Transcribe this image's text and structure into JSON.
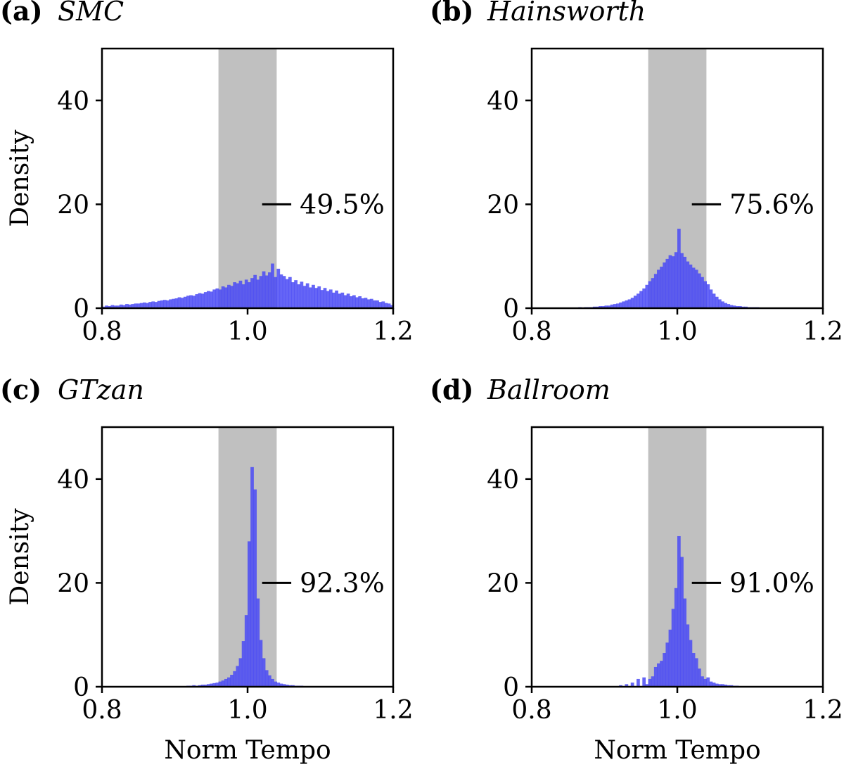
{
  "colors": {
    "bar": "#4a4af5",
    "band": "#c0c0c0",
    "axis": "#000000",
    "background": "#ffffff"
  },
  "chart_data": [
    {
      "type": "bar",
      "panel_letter": "(a)",
      "title": "SMC",
      "xlabel": "",
      "ylabel": "Density",
      "xlim": [
        0.8,
        1.2
      ],
      "ylim": [
        0,
        50
      ],
      "xticks": [
        "0.8",
        "1.0",
        "1.2"
      ],
      "yticks": [
        "0",
        "20",
        "40"
      ],
      "shaded_band": [
        0.96,
        1.04
      ],
      "band_percentage": "49.5%",
      "annotation_y": 20,
      "grid": false,
      "bin_start": 0.8,
      "bin_width": 0.004,
      "values": [
        0.3,
        0.5,
        0.4,
        0.6,
        0.5,
        0.5,
        0.7,
        0.6,
        0.8,
        0.7,
        0.8,
        0.9,
        0.9,
        1.0,
        1.1,
        1.0,
        1.2,
        1.3,
        1.2,
        1.4,
        1.5,
        1.6,
        1.5,
        1.7,
        1.8,
        1.9,
        2.1,
        2.0,
        2.2,
        2.4,
        2.5,
        2.4,
        2.7,
        2.9,
        2.8,
        3.1,
        3.3,
        3.2,
        3.6,
        3.8,
        3.6,
        4.2,
        4.0,
        4.5,
        4.3,
        5.0,
        4.8,
        5.3,
        4.6,
        5.5,
        5.0,
        5.8,
        6.4,
        5.5,
        6.2,
        7.1,
        6.3,
        6.9,
        8.6,
        6.0,
        7.6,
        6.5,
        6.2,
        5.6,
        6.0,
        5.0,
        5.4,
        4.6,
        5.1,
        4.3,
        4.8,
        4.0,
        4.5,
        3.9,
        4.2,
        3.5,
        3.9,
        3.3,
        3.6,
        3.0,
        3.4,
        2.8,
        3.0,
        2.5,
        2.8,
        2.3,
        2.5,
        2.1,
        2.3,
        1.9,
        2.0,
        1.7,
        1.8,
        1.5,
        1.5,
        1.2,
        1.3,
        1.0,
        0.9,
        0.6
      ]
    },
    {
      "type": "bar",
      "panel_letter": "(b)",
      "title": "Hainsworth",
      "xlabel": "",
      "ylabel": "",
      "xlim": [
        0.8,
        1.2
      ],
      "ylim": [
        0,
        50
      ],
      "xticks": [
        "0.8",
        "1.0",
        "1.2"
      ],
      "yticks": [
        "0",
        "20",
        "40"
      ],
      "shaded_band": [
        0.96,
        1.04
      ],
      "band_percentage": "75.6%",
      "annotation_y": 20,
      "grid": false,
      "bin_start": 0.8,
      "bin_width": 0.004,
      "values": [
        0,
        0,
        0,
        0,
        0,
        0,
        0,
        0,
        0,
        0.1,
        0,
        0.1,
        0.1,
        0.1,
        0.1,
        0.1,
        0.2,
        0.1,
        0.2,
        0.2,
        0.2,
        0.3,
        0.3,
        0.4,
        0.4,
        0.5,
        0.5,
        0.7,
        0.8,
        0.9,
        1.1,
        1.3,
        1.5,
        1.7,
        2.0,
        2.4,
        2.8,
        3.3,
        3.8,
        4.5,
        5.2,
        5.8,
        6.6,
        7.4,
        8.0,
        8.8,
        9.5,
        10.2,
        10.0,
        10.8,
        15.3,
        10.6,
        9.9,
        9.0,
        8.4,
        7.8,
        7.4,
        6.7,
        6.0,
        5.2,
        4.6,
        3.6,
        2.8,
        2.2,
        1.7,
        1.3,
        1.0,
        0.8,
        0.6,
        0.5,
        0.4,
        0.4,
        0.3,
        0.3,
        0.2,
        0.2,
        0.2,
        0.2,
        0.1,
        0.1,
        0.1,
        0.1,
        0.1,
        0.1,
        0,
        0.1,
        0,
        0,
        0,
        0,
        0,
        0,
        0,
        0,
        0,
        0,
        0,
        0,
        0,
        0
      ]
    },
    {
      "type": "bar",
      "panel_letter": "(c)",
      "title": "GTzan",
      "xlabel": "Norm Tempo",
      "ylabel": "Density",
      "xlim": [
        0.8,
        1.2
      ],
      "ylim": [
        0,
        50
      ],
      "xticks": [
        "0.8",
        "1.0",
        "1.2"
      ],
      "yticks": [
        "0",
        "20",
        "40"
      ],
      "shaded_band": [
        0.96,
        1.04
      ],
      "band_percentage": "92.3%",
      "annotation_y": 20,
      "grid": false,
      "bin_start": 0.8,
      "bin_width": 0.004,
      "values": [
        0,
        0,
        0,
        0,
        0,
        0,
        0,
        0,
        0,
        0,
        0,
        0,
        0,
        0,
        0,
        0,
        0,
        0,
        0,
        0,
        0,
        0,
        0,
        0.1,
        0.1,
        0.1,
        0.1,
        0.1,
        0.1,
        0.2,
        0.2,
        0.3,
        0.2,
        0.3,
        0.4,
        0.4,
        0.5,
        0.6,
        0.7,
        0.8,
        1.0,
        1.2,
        1.5,
        1.8,
        2.3,
        3.0,
        4.0,
        5.5,
        8.8,
        13.8,
        28.0,
        42.3,
        38.0,
        17.0,
        9.0,
        5.5,
        3.2,
        2.2,
        1.5,
        1.0,
        0.8,
        0.6,
        0.5,
        0.4,
        0.3,
        0.3,
        0.2,
        0.2,
        0.2,
        0.1,
        0.1,
        0.1,
        0.1,
        0.1,
        0,
        0,
        0,
        0,
        0,
        0,
        0,
        0,
        0,
        0,
        0,
        0,
        0,
        0,
        0,
        0,
        0,
        0,
        0,
        0,
        0,
        0,
        0,
        0,
        0,
        0
      ]
    },
    {
      "type": "bar",
      "panel_letter": "(d)",
      "title": "Ballroom",
      "xlabel": "Norm Tempo",
      "ylabel": "",
      "xlim": [
        0.8,
        1.2
      ],
      "ylim": [
        0,
        50
      ],
      "xticks": [
        "0.8",
        "1.0",
        "1.2"
      ],
      "yticks": [
        "0",
        "20",
        "40"
      ],
      "shaded_band": [
        0.96,
        1.04
      ],
      "band_percentage": "91.0%",
      "annotation_y": 20,
      "grid": false,
      "bin_start": 0.8,
      "bin_width": 0.004,
      "values": [
        0,
        0,
        0,
        0,
        0,
        0,
        0,
        0,
        0,
        0,
        0,
        0,
        0,
        0,
        0,
        0,
        0,
        0,
        0,
        0,
        0,
        0,
        0,
        0,
        0,
        0,
        0,
        0,
        0,
        0,
        0.3,
        0,
        0.5,
        0,
        0.8,
        0,
        1.5,
        0,
        1.8,
        0.5,
        1.5,
        2.0,
        3.8,
        4.5,
        5.0,
        6.5,
        8.5,
        11.0,
        15.0,
        19.0,
        29.0,
        25.0,
        17.0,
        12.0,
        9.0,
        6.5,
        5.5,
        3.5,
        2.0,
        1.5,
        1.8,
        1.0,
        0.8,
        0.6,
        0.5,
        0.5,
        0.4,
        0.3,
        0.3,
        0.2,
        0.2,
        0.1,
        0.1,
        0,
        0,
        0,
        0,
        0,
        0,
        0,
        0,
        0,
        0,
        0,
        0,
        0,
        0,
        0,
        0,
        0,
        0,
        0,
        0,
        0,
        0,
        0,
        0,
        0,
        0,
        0
      ]
    }
  ]
}
